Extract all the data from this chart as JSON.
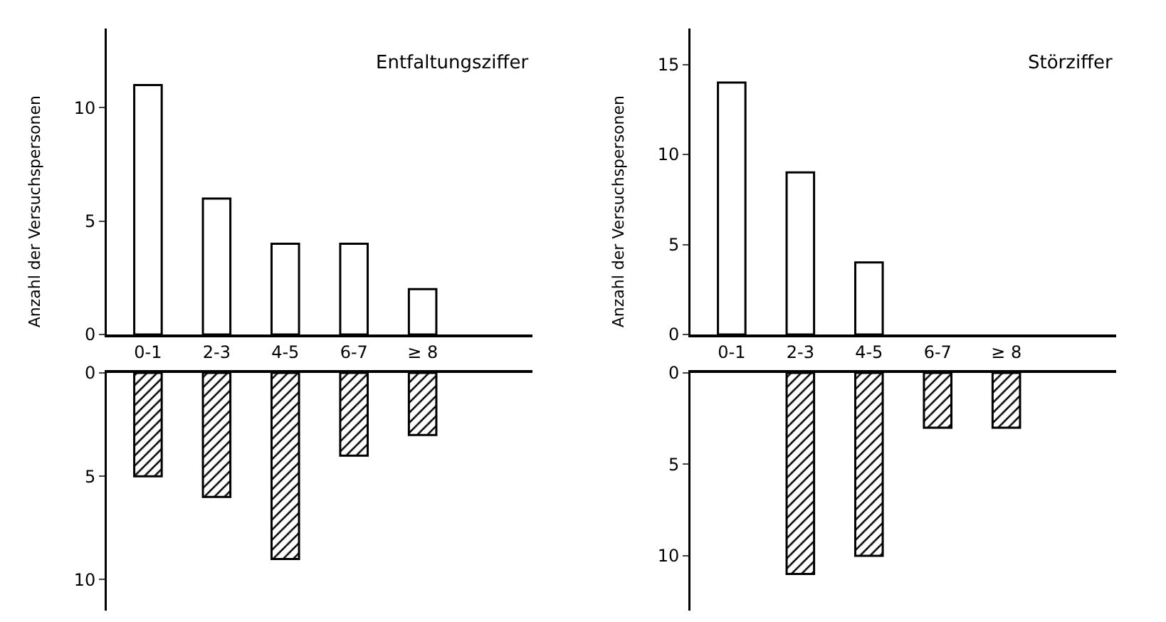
{
  "chart_data": [
    {
      "type": "bar",
      "title": "Entfaltungsziffer",
      "ylabel": "Anzahl der Versuchspersonen",
      "categories": [
        "0-1",
        "2-3",
        "4-5",
        "6-7",
        "≥ 8",
        null
      ],
      "series": [
        {
          "color": "#ffffff",
          "values": [
            11,
            6,
            4,
            4,
            2,
            null
          ]
        }
      ],
      "ylim": [
        0,
        13.5
      ],
      "yticks": [
        0,
        5,
        10
      ]
    },
    {
      "type": "bar",
      "categories": [
        null,
        null,
        null,
        null,
        null,
        null
      ],
      "tick_labels": "y",
      "series": [
        {
          "color": "#000000",
          "values": [
            5,
            6,
            9,
            4,
            3,
            null
          ]
        }
      ],
      "ylim": [
        11.5,
        0
      ],
      "yticks": [
        0,
        5,
        10
      ]
    },
    {
      "type": "bar",
      "title": "Störziffer",
      "ylabel": "Anzahl der Versuchspersonen",
      "categories": [
        "0-1",
        "2-3",
        "4-5",
        "6-7",
        "≥ 8",
        null
      ],
      "series": [
        {
          "color": "#ffffff",
          "values": [
            14,
            9,
            4,
            null,
            null,
            null
          ]
        }
      ],
      "ylim": [
        0,
        17
      ],
      "yticks": [
        0,
        5,
        10,
        15
      ]
    },
    {
      "type": "bar",
      "categories": [
        null,
        null,
        null,
        null,
        null,
        null
      ],
      "tick_labels": "y",
      "series": [
        {
          "color": "#000000",
          "values": [
            null,
            11,
            10,
            3,
            3,
            null
          ]
        }
      ],
      "ylim": [
        13,
        0
      ],
      "yticks": [
        0,
        5,
        10
      ]
    }
  ]
}
